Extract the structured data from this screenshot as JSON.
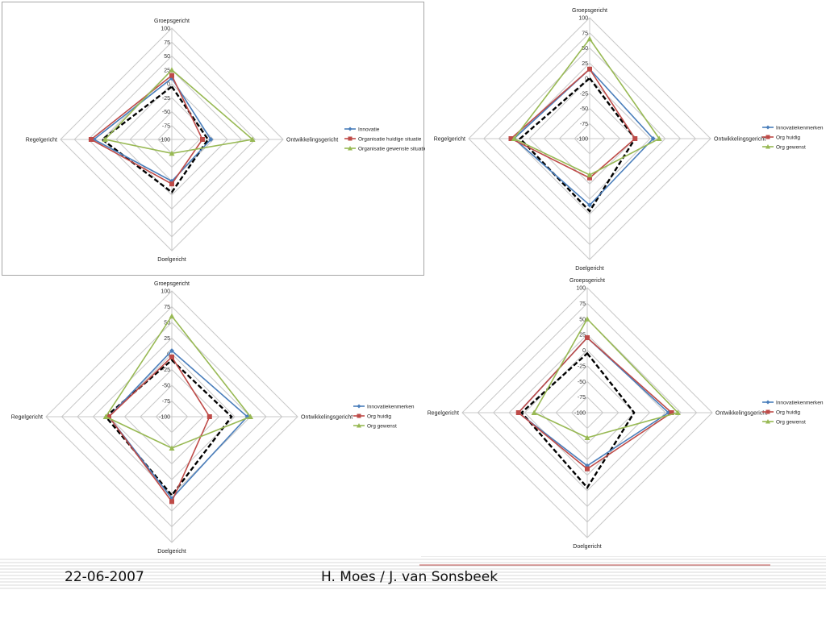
{
  "style": {
    "series_colors": [
      "#4a7ebb",
      "#be4b48",
      "#98b954"
    ],
    "reference_color": "#000000",
    "grid_color": "#c8c8c8"
  },
  "footer": {
    "date": "22-06-2007",
    "authors": "H. Moes / J. van Sonsbeek"
  },
  "chart_data": [
    {
      "type": "radar",
      "axes": [
        "Groepsgericht",
        "Ontwikkelingsgericht",
        "Doelgericht",
        "Regelgericht"
      ],
      "rlim": [
        -100,
        100
      ],
      "ticks": [
        "100",
        "75",
        "50",
        "25",
        "0",
        "-25",
        "-50",
        "-75",
        "-100"
      ],
      "legend": "right",
      "series": [
        {
          "name": "Innovatie",
          "values": [
            10,
            -30,
            -25,
            40
          ]
        },
        {
          "name": "Organisatie huidige situatie",
          "values": [
            15,
            -45,
            -20,
            45
          ]
        },
        {
          "name": "Organisatie gewenste situatie",
          "values": [
            25,
            45,
            -75,
            20
          ]
        }
      ],
      "reference": [
        -5,
        -35,
        -5,
        25
      ]
    },
    {
      "type": "radar",
      "axes": [
        "Groepsgericht",
        "Ontwikkelingsgericht",
        "Doelgericht",
        "Regelgericht"
      ],
      "rlim": [
        -100,
        100
      ],
      "ticks": [
        "100",
        "75",
        "50",
        "25",
        "0",
        "-25",
        "-50",
        "-75",
        "-100"
      ],
      "legend": "right",
      "series": [
        {
          "name": "Innovatiekenmerken",
          "values": [
            15,
            5,
            10,
            25
          ]
        },
        {
          "name": "Org huidig",
          "values": [
            15,
            -25,
            -35,
            30
          ]
        },
        {
          "name": "Org gewenst",
          "values": [
            65,
            15,
            -40,
            25
          ]
        }
      ],
      "reference": [
        0,
        -25,
        20,
        15
      ]
    },
    {
      "type": "radar",
      "axes": [
        "Groepsgericht",
        "Ontwikkelingsgericht",
        "Doelgericht",
        "Regelgericht"
      ],
      "rlim": [
        -100,
        100
      ],
      "ticks": [
        "100",
        "75",
        "50",
        "25",
        "0",
        "-25",
        "-50",
        "-75",
        "-100"
      ],
      "legend": "right",
      "series": [
        {
          "name": "Innovatiekenmerken",
          "values": [
            5,
            20,
            30,
            0
          ]
        },
        {
          "name": "Org huidig",
          "values": [
            -5,
            -40,
            35,
            0
          ]
        },
        {
          "name": "Org gewenst",
          "values": [
            60,
            25,
            -50,
            5
          ]
        }
      ],
      "reference": [
        -10,
        -5,
        25,
        5
      ]
    },
    {
      "type": "radar",
      "axes": [
        "Groepsgericht",
        "Ontwikkelingsgericht",
        "Doelgericht",
        "Regelgericht"
      ],
      "rlim": [
        -100,
        100
      ],
      "ticks": [
        "100",
        "75",
        "50",
        "25",
        "0",
        "-25",
        "-50",
        "-75",
        "-100"
      ],
      "legend": "right",
      "series": [
        {
          "name": "Innovatiekenmerken",
          "values": [
            20,
            30,
            -15,
            10
          ]
        },
        {
          "name": "Org huidig",
          "values": [
            20,
            35,
            -10,
            10
          ]
        },
        {
          "name": "Org gewenst",
          "values": [
            50,
            45,
            -60,
            -15
          ]
        }
      ],
      "reference": [
        -5,
        -25,
        20,
        5
      ]
    }
  ]
}
